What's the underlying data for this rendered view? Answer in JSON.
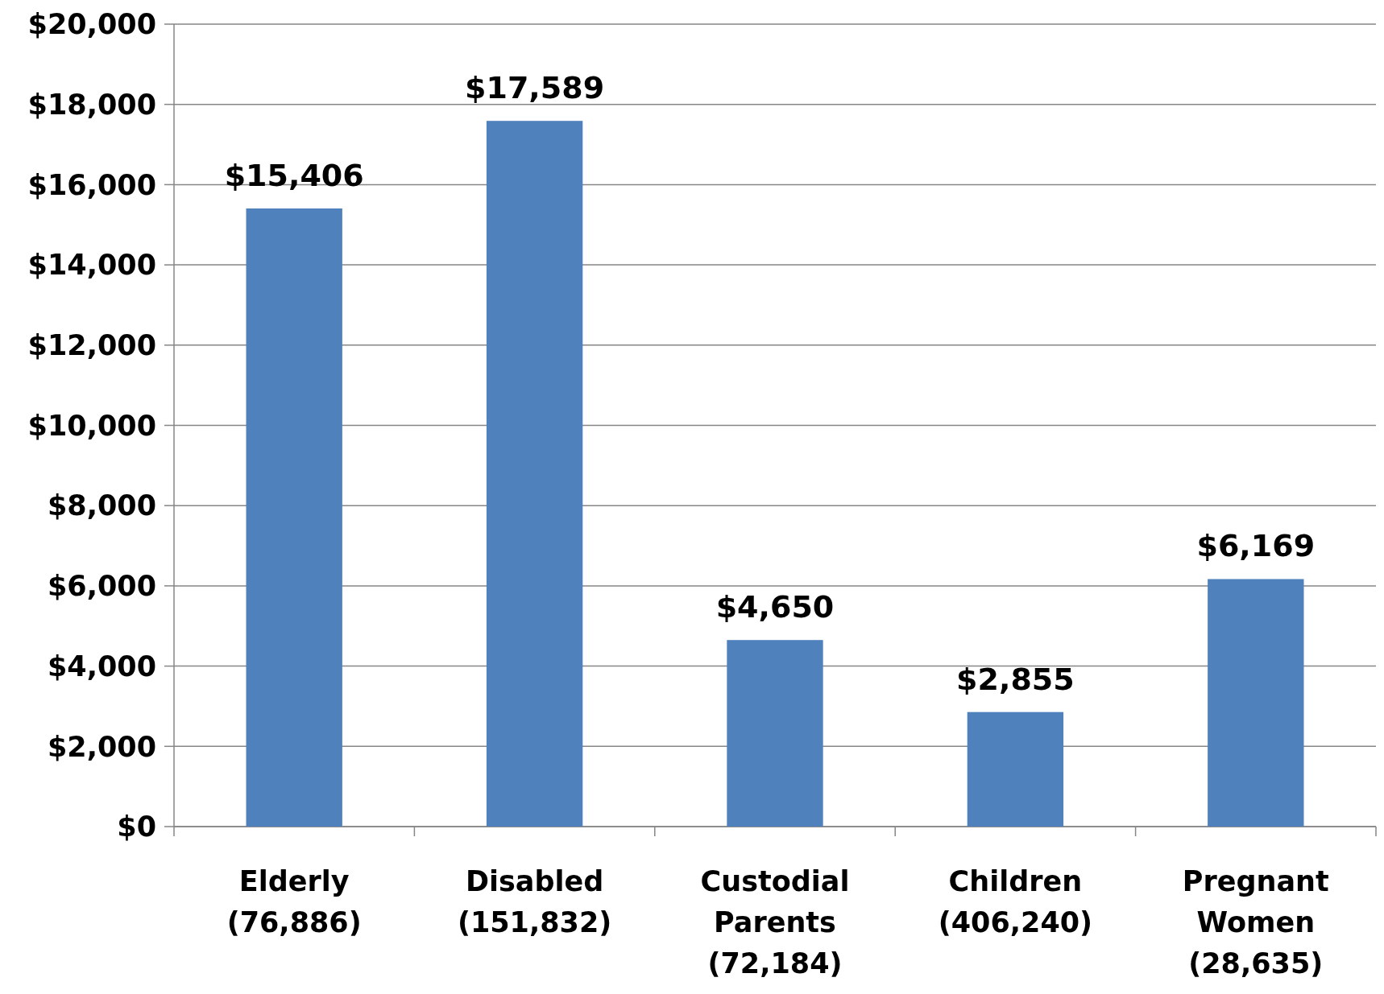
{
  "chart_data": {
    "type": "bar",
    "categories": [
      "Elderly\n(76,886)",
      "Disabled\n(151,832)",
      "Custodial\nParents\n(72,184)",
      "Children\n(406,240)",
      "Pregnant\nWomen\n(28,635)"
    ],
    "values": [
      15406,
      17589,
      4650,
      2855,
      6169
    ],
    "color": "#4f81bd",
    "ylim": [
      0,
      20000
    ],
    "yticks": [
      {
        "value": 0,
        "label": "$0"
      },
      {
        "value": 2000,
        "label": "$2,000"
      },
      {
        "value": 4000,
        "label": "$4,000"
      },
      {
        "value": 6000,
        "label": "$6,000"
      },
      {
        "value": 8000,
        "label": "$8,000"
      },
      {
        "value": 10000,
        "label": "$10,000"
      },
      {
        "value": 12000,
        "label": "$12,000"
      },
      {
        "value": 14000,
        "label": "$14,000"
      },
      {
        "value": 16000,
        "label": "$16,000"
      },
      {
        "value": 18000,
        "label": "$18,000"
      },
      {
        "value": 20000,
        "label": "$20,000"
      }
    ],
    "value_labels": [
      "$15,406",
      "$17,589",
      "$4,650",
      "$2,855",
      "$6,169"
    ],
    "grid": "y"
  }
}
